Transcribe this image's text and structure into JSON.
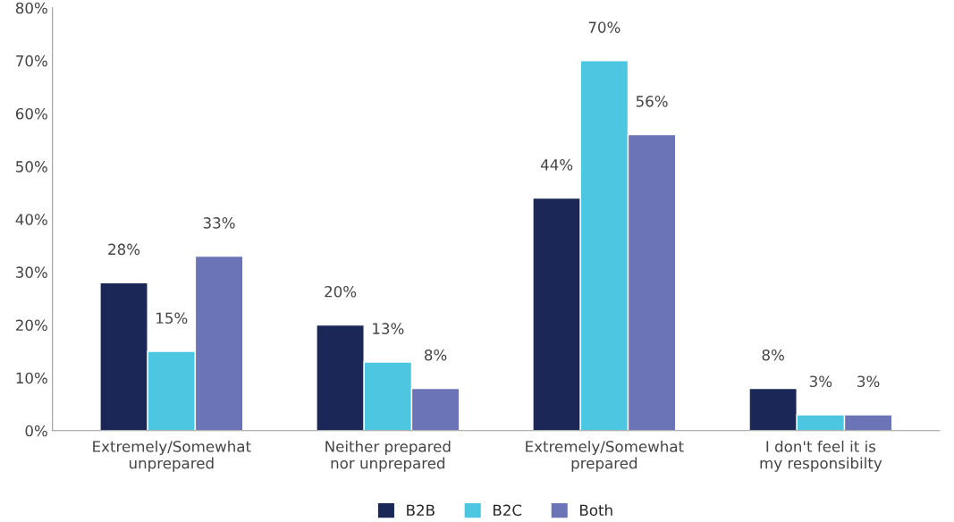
{
  "chart_data": {
    "type": "bar",
    "categories": [
      "Extremely/Somewhat\nunprepared",
      "Neither prepared\nnor unprepared",
      "Extremely/Somewhat\nprepared",
      "I don't feel it is\nmy responsibilty"
    ],
    "series": [
      {
        "name": "B2B",
        "color": "#1b2857",
        "values": [
          28,
          20,
          44,
          8
        ],
        "value_labels": [
          "28%",
          "20%",
          "44%",
          "8%"
        ]
      },
      {
        "name": "B2C",
        "color": "#4dc6e2",
        "values": [
          15,
          13,
          70,
          3
        ],
        "value_labels": [
          "15%",
          "13%",
          "70%",
          "3%"
        ]
      },
      {
        "name": "Both",
        "color": "#6b74b6",
        "values": [
          33,
          8,
          56,
          3
        ],
        "value_labels": [
          "33%",
          "8%",
          "56%",
          "3%"
        ]
      }
    ],
    "ylim": [
      0,
      80
    ],
    "yticks": [
      {
        "value": 0,
        "label": "0%"
      },
      {
        "value": 10,
        "label": "10%"
      },
      {
        "value": 20,
        "label": "20%"
      },
      {
        "value": 30,
        "label": "30%"
      },
      {
        "value": 40,
        "label": "40%"
      },
      {
        "value": 50,
        "label": "50%"
      },
      {
        "value": 60,
        "label": "60%"
      },
      {
        "value": 70,
        "label": "70%"
      },
      {
        "value": 80,
        "label": "80%"
      }
    ],
    "grid": false,
    "legend": "bottom"
  }
}
